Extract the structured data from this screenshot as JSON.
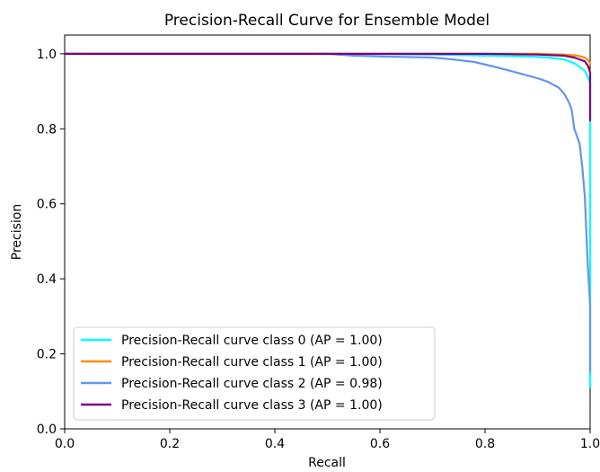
{
  "chart_data": {
    "type": "line",
    "title": "Precision-Recall Curve for Ensemble Model",
    "xlabel": "Recall",
    "ylabel": "Precision",
    "xlim": [
      0.0,
      1.0
    ],
    "ylim": [
      0.0,
      1.05
    ],
    "xticks": [
      "0.0",
      "0.2",
      "0.4",
      "0.6",
      "0.8",
      "1.0"
    ],
    "yticks": [
      "0.0",
      "0.2",
      "0.4",
      "0.6",
      "0.8",
      "1.0"
    ],
    "grid": false,
    "legend_position": "lower-left",
    "series": [
      {
        "name": "Precision-Recall curve class 0 (AP = 1.00)",
        "color": "#00ffff",
        "x": [
          0.0,
          0.5,
          0.7,
          0.8,
          0.88,
          0.92,
          0.95,
          0.97,
          0.98,
          0.99,
          0.995,
          0.998,
          1.0,
          1.0
        ],
        "y": [
          1.0,
          1.0,
          0.998,
          0.995,
          0.993,
          0.99,
          0.985,
          0.975,
          0.965,
          0.955,
          0.94,
          0.93,
          0.92,
          0.11
        ]
      },
      {
        "name": "Precision-Recall curve class 1 (AP = 1.00)",
        "color": "#ff8c00",
        "x": [
          0.0,
          0.6,
          0.8,
          0.9,
          0.95,
          0.97,
          0.98,
          0.99,
          0.995,
          1.0,
          1.0
        ],
        "y": [
          1.0,
          1.0,
          1.0,
          1.0,
          0.998,
          0.996,
          0.994,
          0.99,
          0.985,
          0.975,
          0.97
        ]
      },
      {
        "name": "Precision-Recall curve class 2 (AP = 0.98)",
        "color": "#6495ed",
        "x": [
          0.0,
          0.5,
          0.55,
          0.6,
          0.7,
          0.74,
          0.78,
          0.82,
          0.86,
          0.9,
          0.92,
          0.94,
          0.95,
          0.96,
          0.965,
          0.97,
          0.975,
          0.98,
          0.985,
          0.99,
          0.995,
          1.0,
          1.0,
          1.0
        ],
        "y": [
          1.0,
          1.0,
          0.995,
          0.993,
          0.99,
          0.985,
          0.978,
          0.965,
          0.95,
          0.935,
          0.925,
          0.91,
          0.895,
          0.87,
          0.85,
          0.8,
          0.78,
          0.76,
          0.7,
          0.62,
          0.45,
          0.33,
          0.2,
          0.15
        ]
      },
      {
        "name": "Precision-Recall curve class 3 (AP = 1.00)",
        "color": "#800080",
        "x": [
          0.0,
          0.5,
          0.8,
          0.9,
          0.95,
          0.97,
          0.98,
          0.99,
          0.995,
          0.998,
          1.0,
          1.0,
          1.0
        ],
        "y": [
          1.0,
          1.0,
          1.0,
          0.998,
          0.995,
          0.99,
          0.985,
          0.98,
          0.97,
          0.96,
          0.95,
          0.85,
          0.82
        ]
      }
    ]
  }
}
